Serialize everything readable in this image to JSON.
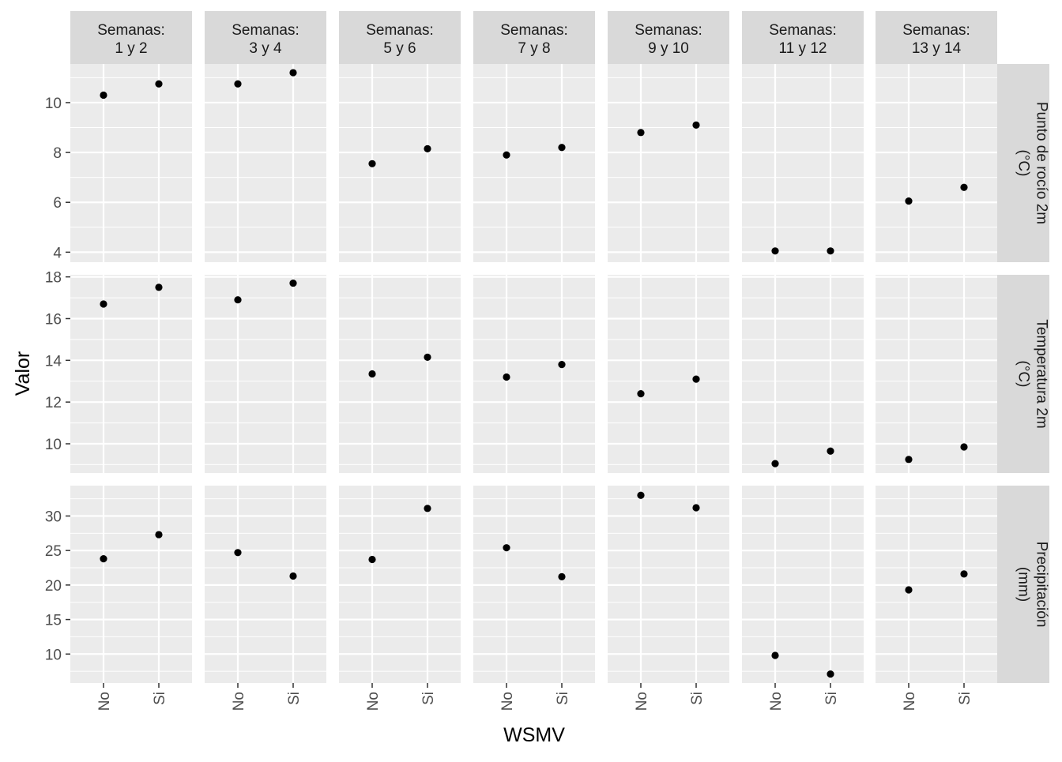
{
  "chart_data": {
    "type": "scatter",
    "xlabel": "WSMV",
    "ylabel": "Valor",
    "categories": [
      "No",
      "Si"
    ],
    "columns": [
      [
        "Semanas:",
        "1 y 2"
      ],
      [
        "Semanas:",
        "3 y 4"
      ],
      [
        "Semanas:",
        "5 y 6"
      ],
      [
        "Semanas:",
        "7 y 8"
      ],
      [
        "Semanas:",
        "9 y 10"
      ],
      [
        "Semanas:",
        "11 y 12"
      ],
      [
        "Semanas:",
        "13 y 14"
      ]
    ],
    "rows": [
      {
        "label": [
          "Punto de rocío 2m",
          "(°C)"
        ],
        "ylim": [
          3.6,
          11.55
        ],
        "yticks": [
          4,
          6,
          8,
          10
        ],
        "values": [
          [
            10.3,
            10.75
          ],
          [
            10.75,
            11.2
          ],
          [
            7.55,
            8.15
          ],
          [
            7.9,
            8.2
          ],
          [
            8.8,
            9.1
          ],
          [
            4.05,
            4.05
          ],
          [
            6.05,
            6.6
          ]
        ]
      },
      {
        "label": [
          "Temperatura 2m",
          "(°C)"
        ],
        "ylim": [
          8.6,
          18.1
        ],
        "yticks": [
          10,
          12,
          14,
          16,
          18
        ],
        "values": [
          [
            16.7,
            17.5
          ],
          [
            16.9,
            17.7
          ],
          [
            13.35,
            14.15
          ],
          [
            13.2,
            13.8
          ],
          [
            12.4,
            13.1
          ],
          [
            9.05,
            9.65
          ],
          [
            9.25,
            9.85
          ]
        ]
      },
      {
        "label": [
          "Precipitación",
          "(mm)"
        ],
        "ylim": [
          5.8,
          34.4
        ],
        "yticks": [
          10,
          15,
          20,
          25,
          30
        ],
        "values": [
          [
            23.8,
            27.3
          ],
          [
            24.7,
            21.3
          ],
          [
            23.7,
            31.1
          ],
          [
            25.4,
            21.2
          ],
          [
            33.0,
            31.2
          ],
          [
            9.8,
            7.1
          ],
          [
            19.3,
            21.6
          ]
        ]
      }
    ],
    "colors": {
      "panel_bg": "#ebebeb",
      "strip_bg": "#d9d9d9",
      "grid_major": "#ffffff",
      "point": "#000000"
    }
  }
}
